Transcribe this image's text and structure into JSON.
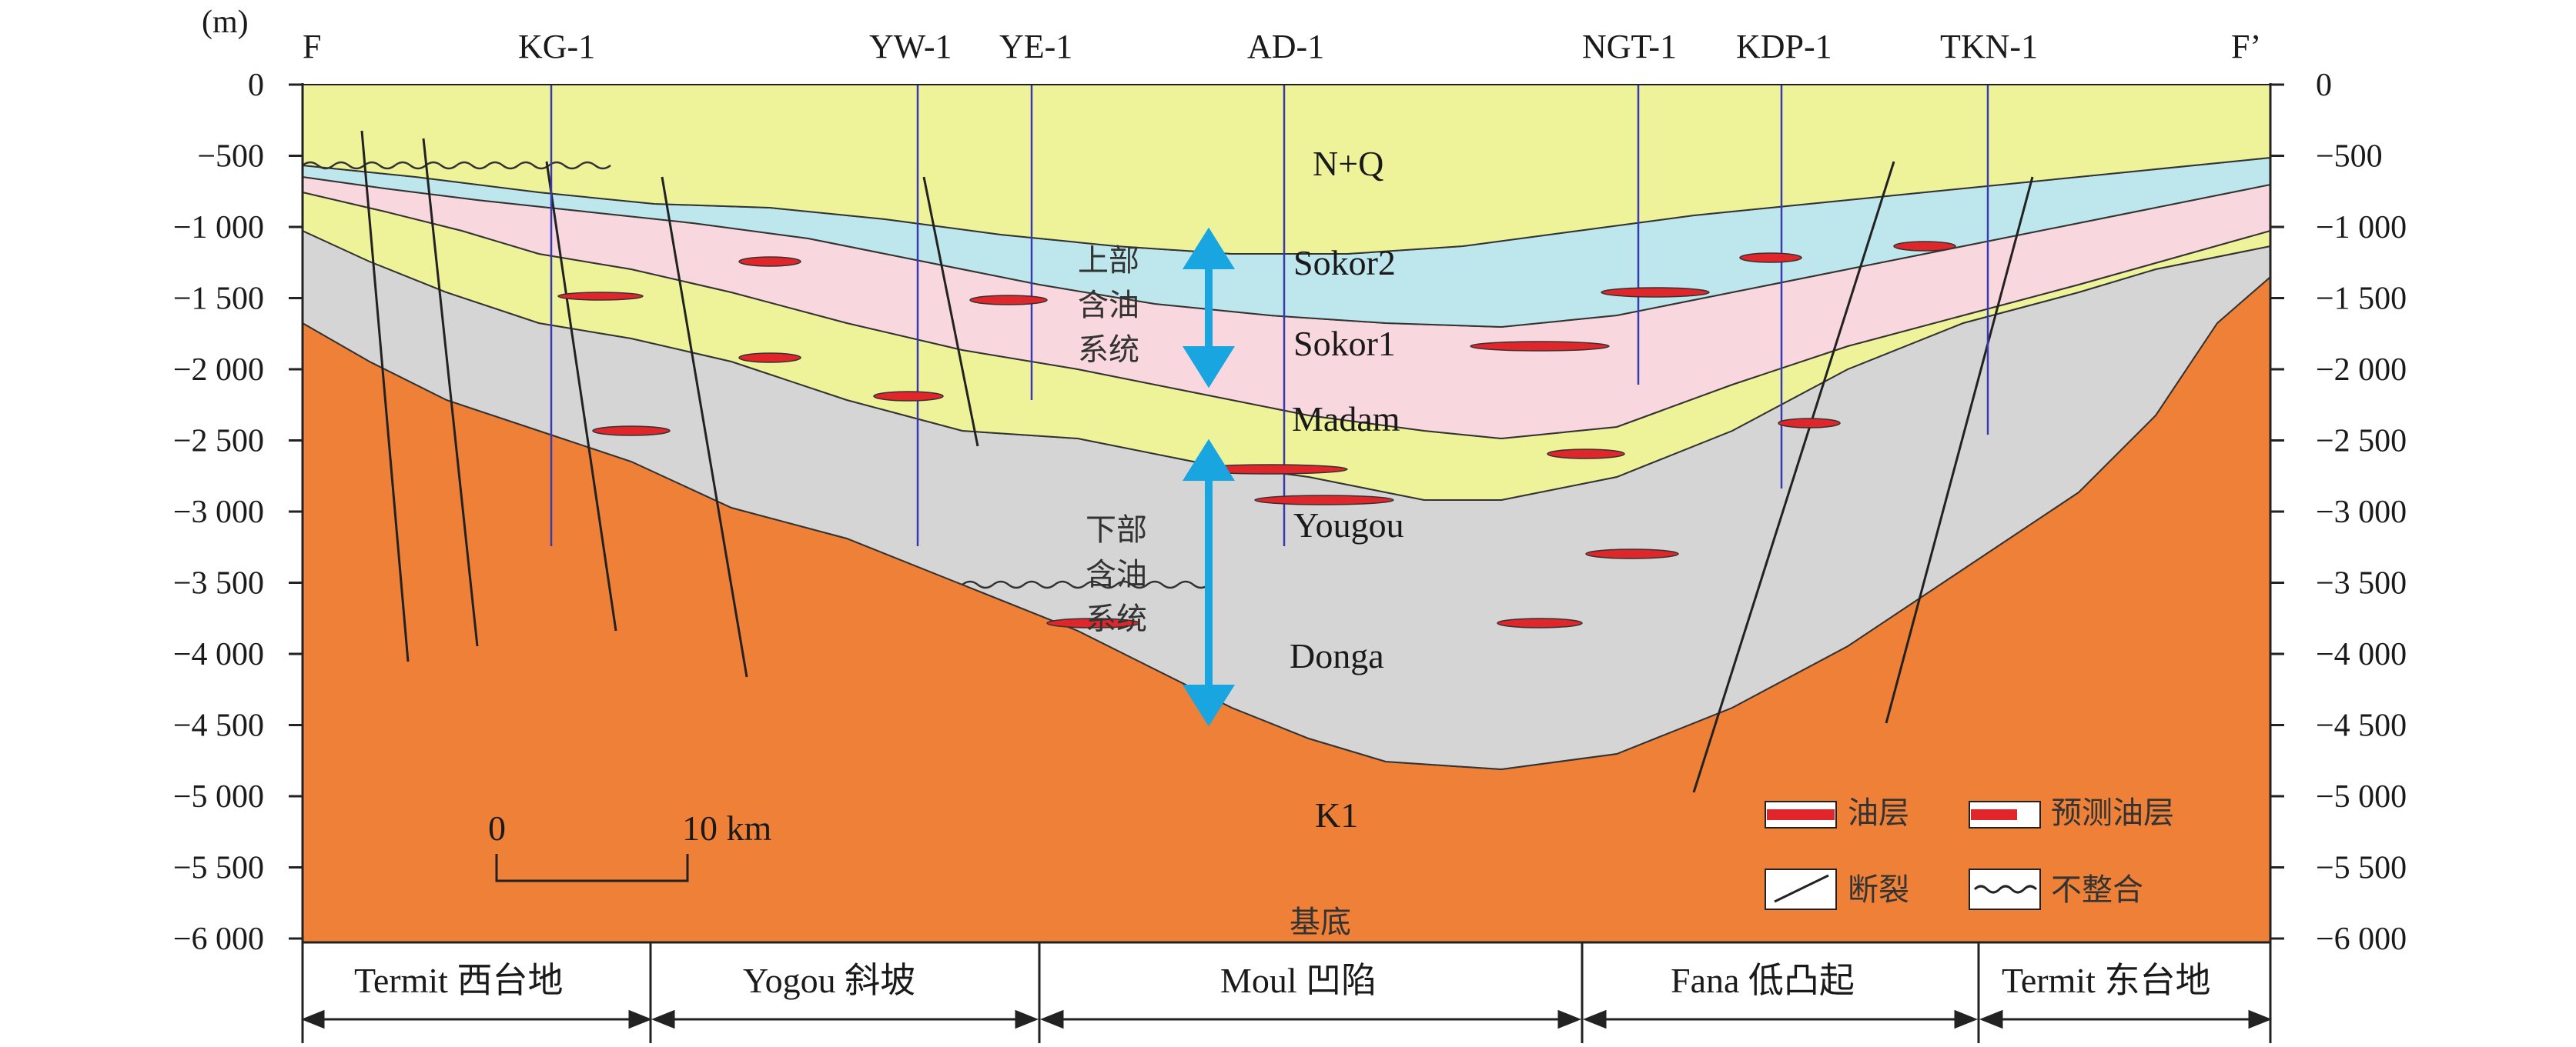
{
  "axis": {
    "unit": "(m)",
    "left_ticks": [
      "0",
      "−500",
      "−1 000",
      "−1 500",
      "−2 000",
      "−2 500",
      "−3 000",
      "−3 500",
      "−4 000",
      "−4 500",
      "−5 000",
      "−5 500",
      "−6 000"
    ],
    "right_ticks": [
      "0",
      "−500",
      "−1 000",
      "−1 500",
      "−2 000",
      "−2 500",
      "−3 000",
      "−3 500",
      "−4 000",
      "−4 500",
      "−5 000",
      "−5 500",
      "−6 000"
    ]
  },
  "section_ends": {
    "left": "F",
    "right": "F’"
  },
  "wells": [
    "KG-1",
    "YW-1",
    "YE-1",
    "AD-1",
    "NGT-1",
    "KDP-1",
    "TKN-1"
  ],
  "layers": {
    "nq": "N+Q",
    "sokor2": "Sokor2",
    "sokor1": "Sokor1",
    "madam": "Madam",
    "yougou": "Yougou",
    "donga": "Donga",
    "k1": "K1",
    "basement": "基底"
  },
  "systems": {
    "upper": [
      "上部",
      "含油",
      "系统"
    ],
    "lower": [
      "下部",
      "含油",
      "系统"
    ]
  },
  "scale_bar": {
    "start": "0",
    "end": "10 km"
  },
  "legend": {
    "oil_layer": "油层",
    "predicted_oil_layer": "预测油层",
    "fault": "断裂",
    "unconformity": "不整合"
  },
  "regions": [
    "Termit 西台地",
    "Yogou 斜坡",
    "Moul 凹陷",
    "Fana 低凸起",
    "Termit 东台地"
  ],
  "colors": {
    "nq": "#eef39a",
    "sokor2": "#bde7ec",
    "sokor1": "#f8d8de",
    "madam": "#eef39a",
    "lower": "#d5d5d5",
    "k1": "#ee8038",
    "oil": "#e0262a",
    "arrow": "#19a6e0",
    "well": "#3a3ab0"
  }
}
